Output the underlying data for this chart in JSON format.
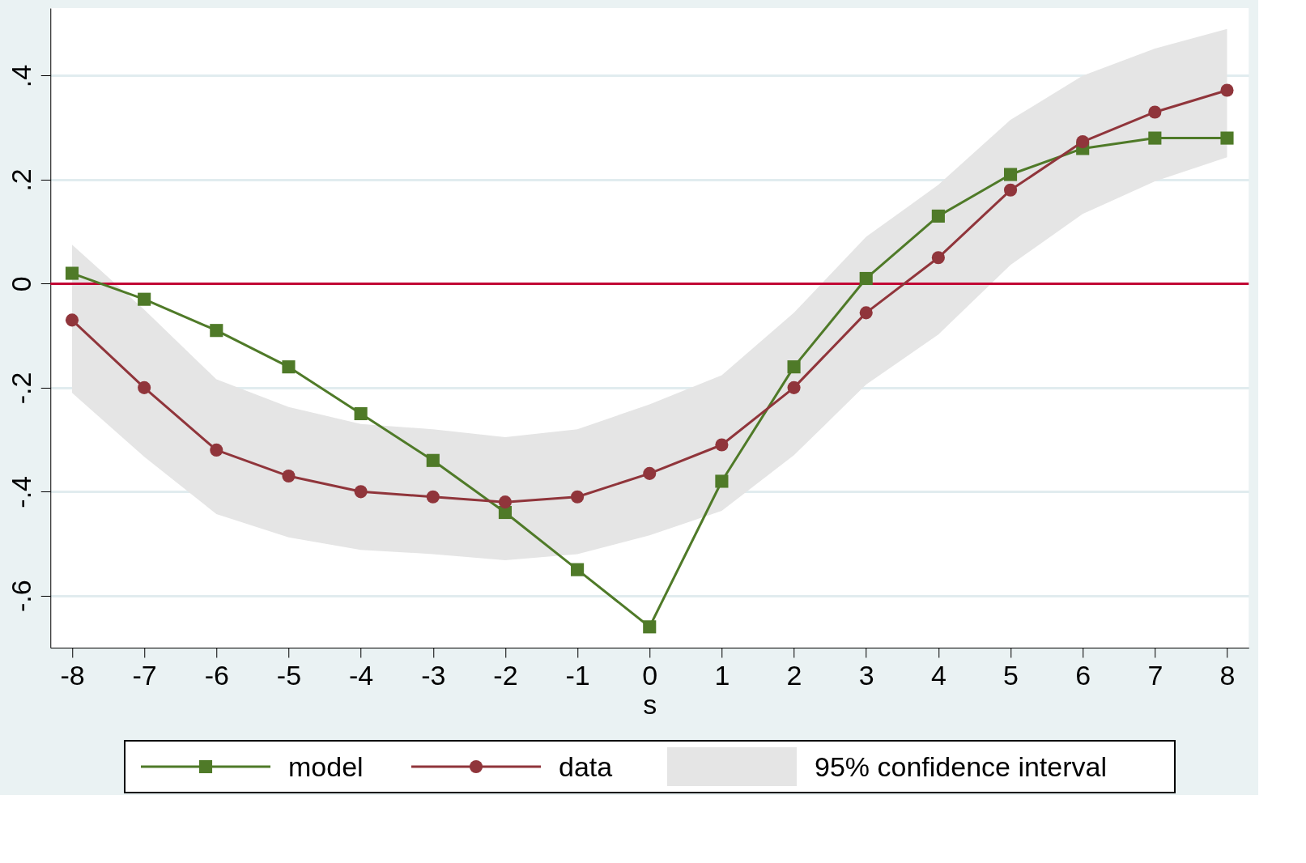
{
  "chart_data": {
    "type": "line",
    "xlabel": "s",
    "x": [
      -8,
      -7,
      -6,
      -5,
      -4,
      -3,
      -2,
      -1,
      0,
      1,
      2,
      3,
      4,
      5,
      6,
      7,
      8
    ],
    "series": [
      {
        "name": "model",
        "color": "#4f7a28",
        "marker": "square",
        "values": [
          0.02,
          -0.03,
          -0.09,
          -0.16,
          -0.25,
          -0.34,
          -0.44,
          -0.55,
          -0.66,
          -0.38,
          -0.16,
          0.01,
          0.13,
          0.21,
          0.26,
          0.28,
          0.28
        ]
      },
      {
        "name": "data",
        "color": "#90353b",
        "marker": "circle",
        "values": [
          -0.07,
          -0.2,
          -0.32,
          -0.37,
          -0.4,
          -0.41,
          -0.42,
          -0.41,
          -0.365,
          -0.31,
          -0.2,
          -0.056,
          0.05,
          0.18,
          0.273,
          0.33,
          0.372
        ]
      },
      {
        "name": "95% confidence interval",
        "type": "area",
        "color": "#e5e5e5",
        "lower": [
          -0.21,
          -0.333,
          -0.443,
          -0.488,
          -0.512,
          -0.52,
          -0.532,
          -0.52,
          -0.484,
          -0.437,
          -0.33,
          -0.194,
          -0.098,
          0.036,
          0.134,
          0.197,
          0.243
        ],
        "upper": [
          0.075,
          -0.05,
          -0.184,
          -0.237,
          -0.27,
          -0.28,
          -0.295,
          -0.28,
          -0.232,
          -0.176,
          -0.056,
          0.09,
          0.19,
          0.315,
          0.4,
          0.452,
          0.49
        ],
        "values": [
          null,
          null,
          null,
          null,
          null,
          null,
          null,
          null,
          null,
          null,
          null,
          null,
          null,
          null,
          null,
          null,
          null
        ]
      }
    ],
    "xlim": [
      -8.3,
      8.3
    ],
    "ylim": [
      -0.7,
      0.53
    ],
    "xticks": [
      -8,
      -7,
      -6,
      -5,
      -4,
      -3,
      -2,
      -1,
      0,
      1,
      2,
      3,
      4,
      5,
      6,
      7,
      8
    ],
    "yticks": [
      {
        "value": -0.6,
        "label": "-.6"
      },
      {
        "value": -0.4,
        "label": "-.4"
      },
      {
        "value": -0.2,
        "label": "-.2"
      },
      {
        "value": 0,
        "label": "0"
      },
      {
        "value": 0.2,
        "label": ".2"
      },
      {
        "value": 0.4,
        "label": ".4"
      }
    ],
    "ref_lines": [
      {
        "axis": "y",
        "value": 0,
        "color": "#c10534"
      }
    ],
    "grid": "y",
    "legend": "bottom"
  }
}
